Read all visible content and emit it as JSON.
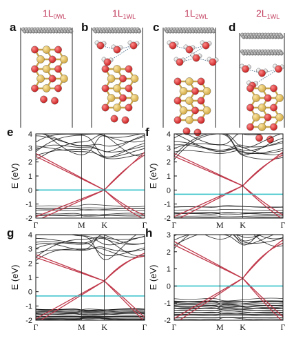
{
  "figure": {
    "structures": [
      {
        "letter": "a",
        "title": "1L",
        "sub": "0WL",
        "layers": 1,
        "water_molecules": 0
      },
      {
        "letter": "b",
        "title": "1L",
        "sub": "1WL",
        "layers": 1,
        "water_molecules": 4
      },
      {
        "letter": "c",
        "title": "1L",
        "sub": "2WL",
        "layers": 1,
        "water_molecules": 6
      },
      {
        "letter": "d",
        "title": "2L",
        "sub": "1WL",
        "layers": 2,
        "water_molecules": 4
      }
    ],
    "colors": {
      "title": "#c0395a",
      "band_black": "#111111",
      "band_red": "#c0394b",
      "fermi_cyan": "#33c1c9",
      "si_yellow": "#e5c25a",
      "o_red": "#d92626",
      "h_white": "#f2f2f2",
      "carbon_gray": "#8c8c8c"
    }
  },
  "chart_data": [
    {
      "letter": "e",
      "type": "line",
      "ylabel": "E (eV)",
      "ylim": [
        -2,
        4
      ],
      "yticks": [
        "4",
        "3",
        "2",
        "1",
        "0",
        "-1",
        "-2"
      ],
      "kpoints": [
        "Γ",
        "M",
        "K",
        "Γ"
      ],
      "dirac_energy": 0.0,
      "fermi_level": 0.0
    },
    {
      "letter": "f",
      "type": "line",
      "ylabel": "E (eV)",
      "ylim": [
        -2,
        4
      ],
      "yticks": [
        "4",
        "3",
        "2",
        "1",
        "0",
        "-1",
        "-2"
      ],
      "kpoints": [
        "Γ",
        "M",
        "K",
        "Γ"
      ],
      "dirac_energy": 0.3,
      "fermi_level": -0.3
    },
    {
      "letter": "g",
      "type": "line",
      "ylabel": "E (eV)",
      "ylim": [
        -2,
        4
      ],
      "yticks": [
        "4",
        "3",
        "2",
        "1",
        "0",
        "-1",
        "-2"
      ],
      "kpoints": [
        "Γ",
        "M",
        "K",
        "Γ"
      ],
      "dirac_energy": 0.75,
      "fermi_level": -0.3
    },
    {
      "letter": "h",
      "type": "line",
      "ylabel": "E (eV)",
      "ylim": [
        -2,
        3
      ],
      "yticks": [
        "3",
        "2",
        "1",
        "0",
        "-1",
        "-2"
      ],
      "kpoints": [
        "Γ",
        "M",
        "K",
        "Γ"
      ],
      "dirac_energy": 0.45,
      "fermi_level": 0.0
    }
  ]
}
